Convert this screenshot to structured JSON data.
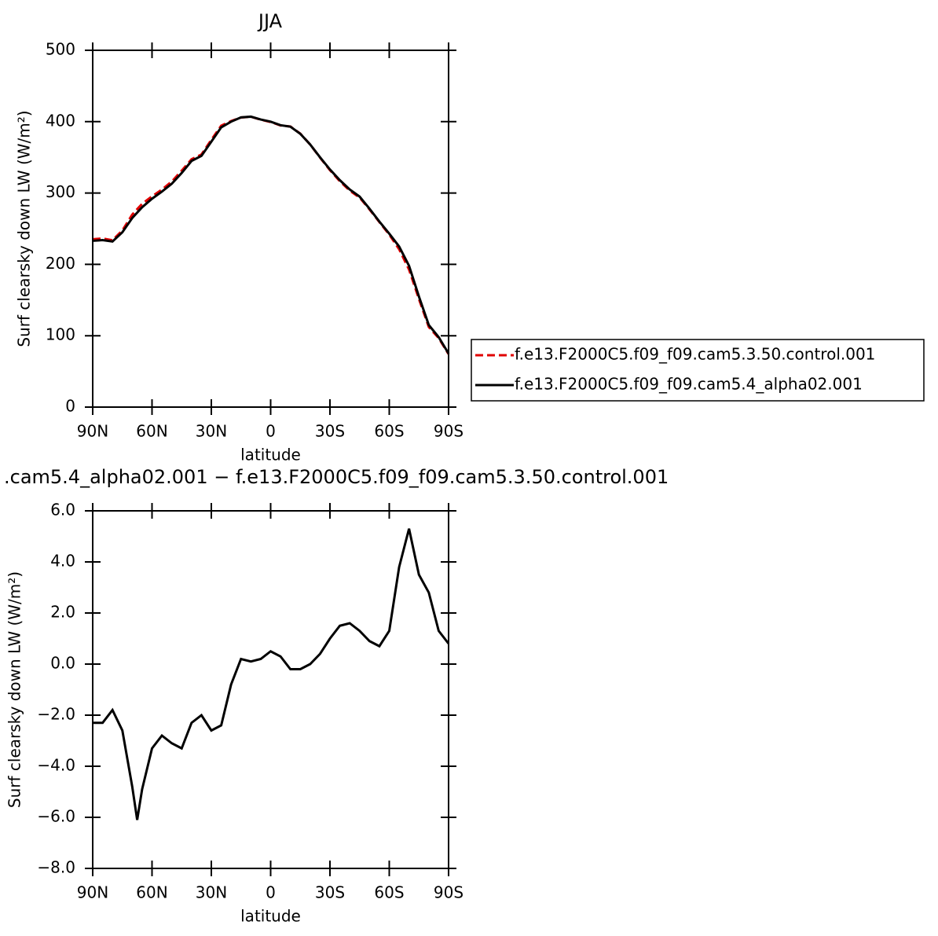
{
  "chart_data": [
    {
      "type": "line",
      "title": "JJA",
      "xlabel": "latitude",
      "ylabel": "Surf clearsky down LW (W/m²)",
      "x": [
        90,
        85,
        80,
        75,
        70,
        65,
        60,
        55,
        50,
        45,
        40,
        35,
        30,
        25,
        20,
        15,
        10,
        5,
        0,
        -5,
        -10,
        -15,
        -20,
        -25,
        -30,
        -35,
        -40,
        -45,
        -50,
        -55,
        -60,
        -65,
        -70,
        -75,
        -80,
        -85,
        -90
      ],
      "xlim": [
        90,
        -90
      ],
      "xticks": [
        {
          "value": 90,
          "label": "90N"
        },
        {
          "value": 60,
          "label": "60N"
        },
        {
          "value": 30,
          "label": "30N"
        },
        0,
        {
          "value": -30,
          "label": "30S"
        },
        {
          "value": -60,
          "label": "60S"
        },
        {
          "value": -90,
          "label": "90S"
        }
      ],
      "ylim": [
        0,
        500
      ],
      "yticks": [
        0,
        100,
        200,
        300,
        400,
        500
      ],
      "legend": "right",
      "series": [
        {
          "name": "f.e13.F2000C5.f09_f09.cam5.3.50.control.001",
          "color": "#e00000",
          "style": "dashed",
          "values": [
            235.3,
            236.3,
            233.8,
            247.6,
            269.8,
            284.9,
            295.3,
            304.8,
            316.1,
            331.3,
            347.3,
            354,
            374.6,
            394.4,
            400.8,
            405.8,
            406.9,
            402.8,
            399.5,
            394.7,
            393.2,
            383.2,
            368,
            349.6,
            332,
            316.5,
            303.4,
            293.7,
            277.1,
            259.3,
            241.7,
            221.2,
            192.7,
            151.5,
            112.2,
            96.7,
            74.2
          ]
        },
        {
          "name": "f.e13.F2000C5.f09_f09.cam5.4_alpha02.001",
          "color": "#000000",
          "style": "solid",
          "values": [
            233,
            234,
            232,
            245,
            265,
            280,
            292,
            302,
            313,
            328,
            345,
            352,
            372,
            392,
            400,
            406,
            407,
            403,
            400,
            395,
            393,
            383,
            368,
            350,
            333,
            318,
            305,
            295,
            278,
            260,
            243,
            225,
            198,
            155,
            115,
            98,
            75
          ]
        }
      ]
    },
    {
      "type": "line",
      "title": ".cam5.4_alpha02.001 − f.e13.F2000C5.f09_f09.cam5.3.50.control.001",
      "xlabel": "latitude",
      "ylabel": "Surf clearsky down LW (W/m²)",
      "x": [
        90,
        85,
        80,
        75,
        70,
        67.5,
        65,
        60,
        55,
        50,
        45,
        40,
        35,
        30,
        25,
        20,
        15,
        10,
        5,
        0,
        -5,
        -10,
        -15,
        -20,
        -25,
        -30,
        -35,
        -40,
        -45,
        -50,
        -55,
        -60,
        -65,
        -70,
        -75,
        -80,
        -85,
        -90
      ],
      "xlim": [
        90,
        -90
      ],
      "xticks": [
        {
          "value": 90,
          "label": "90N"
        },
        {
          "value": 60,
          "label": "60N"
        },
        {
          "value": 30,
          "label": "30N"
        },
        0,
        {
          "value": -30,
          "label": "30S"
        },
        {
          "value": -60,
          "label": "60S"
        },
        {
          "value": -90,
          "label": "90S"
        }
      ],
      "ylim": [
        -8,
        6
      ],
      "yticks": [
        {
          "value": -8,
          "label": "−8.0"
        },
        {
          "value": -6,
          "label": "−6.0"
        },
        {
          "value": -4,
          "label": "−4.0"
        },
        {
          "value": -2,
          "label": "−2.0"
        },
        {
          "value": 0,
          "label": "0.0"
        },
        {
          "value": 2,
          "label": "2.0"
        },
        {
          "value": 4,
          "label": "4.0"
        },
        {
          "value": 6,
          "label": "6.0"
        }
      ],
      "series": [
        {
          "color": "#000000",
          "style": "solid",
          "values": [
            -2.3,
            -2.3,
            -1.8,
            -2.6,
            -4.8,
            -6.1,
            -4.9,
            -3.3,
            -2.8,
            -3.1,
            -3.3,
            -2.3,
            -2.0,
            -2.6,
            -2.4,
            -0.8,
            0.2,
            0.1,
            0.2,
            0.5,
            0.3,
            -0.2,
            -0.2,
            0.0,
            0.4,
            1.0,
            1.5,
            1.6,
            1.3,
            0.9,
            0.7,
            1.3,
            3.8,
            5.3,
            3.5,
            2.8,
            1.3,
            0.8
          ]
        }
      ]
    }
  ]
}
